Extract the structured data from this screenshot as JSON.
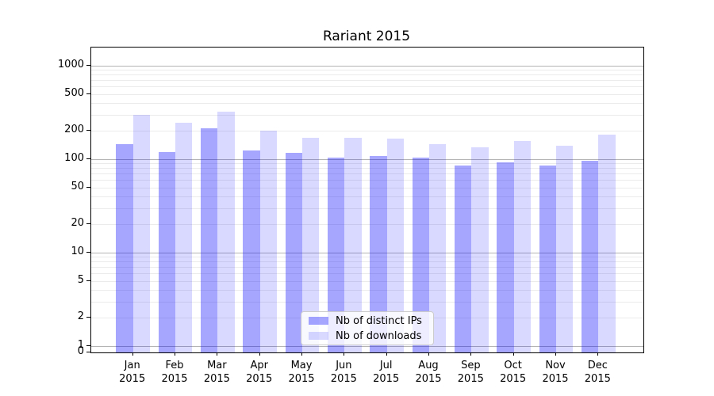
{
  "chart_data": {
    "type": "bar",
    "title": "Rariant 2015",
    "categories": [
      "Jan",
      "Feb",
      "Mar",
      "Apr",
      "May",
      "Jun",
      "Jul",
      "Aug",
      "Sep",
      "Oct",
      "Nov",
      "Dec"
    ],
    "year": "2015",
    "series": [
      {
        "name": "Nb of distinct IPs",
        "color": "rgba(0,0,255,0.35)",
        "color_hex_on_white": "#a6a6ff",
        "values": [
          145,
          120,
          215,
          125,
          117,
          104,
          108,
          103,
          86,
          93,
          85,
          96
        ]
      },
      {
        "name": "Nb of downloads",
        "color": "rgba(0,0,255,0.15)",
        "color_hex_on_white": "#d9d9ff",
        "values": [
          296,
          243,
          324,
          202,
          170,
          168,
          166,
          146,
          135,
          158,
          140,
          183
        ]
      }
    ],
    "yscale": "symlog",
    "yticks": [
      1000,
      500,
      200,
      100,
      50,
      20,
      10,
      5,
      2,
      1,
      0
    ],
    "ylim": [
      0,
      1550
    ],
    "xlabel": "",
    "ylabel": "",
    "grid": "horizontal",
    "grid_major_color": "#b4b4b4",
    "grid_minor_color": "#ebebeb",
    "legend_position": "lower center",
    "legend_labels": [
      "Nb of distinct IPs",
      "Nb of downloads"
    ]
  }
}
